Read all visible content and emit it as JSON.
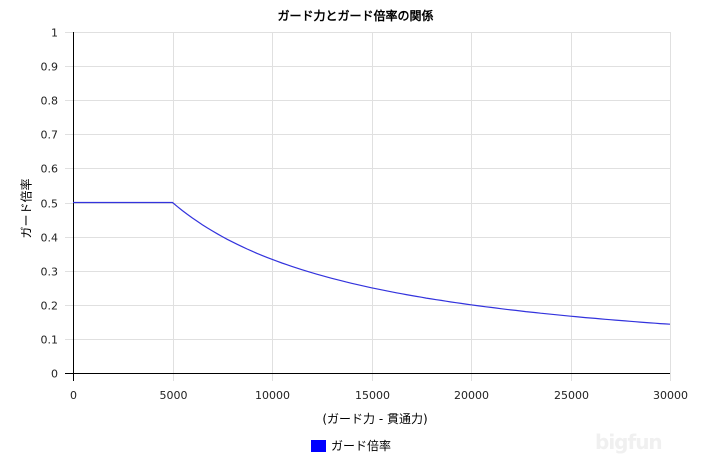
{
  "title": "ガード力とガード倍率の関係",
  "watermark": "bigfun",
  "chart_data": {
    "type": "line",
    "title": "ガード力とガード倍率の関係",
    "xlabel": "(ガード力 - 貫通力)",
    "ylabel": "ガード倍率",
    "xlim": [
      0,
      30000
    ],
    "ylim": [
      0,
      1
    ],
    "grid": true,
    "legend_position": "bottom",
    "x_ticks": [
      "0",
      "5000",
      "10000",
      "15000",
      "20000",
      "25000",
      "30000"
    ],
    "y_ticks": [
      "0",
      "0.1",
      "0.2",
      "0.3",
      "0.4",
      "0.5",
      "0.6",
      "0.7",
      "0.8",
      "0.9",
      "1"
    ],
    "series": [
      {
        "name": "ガード倍率",
        "color": "#0000ff",
        "x": [
          0,
          2500,
          5000,
          7500,
          10000,
          12500,
          15000,
          17500,
          20000,
          22500,
          25000,
          27500,
          30000
        ],
        "values": [
          0.5,
          0.5,
          0.5,
          0.4,
          0.333,
          0.286,
          0.25,
          0.222,
          0.2,
          0.182,
          0.167,
          0.154,
          0.143
        ]
      }
    ]
  }
}
